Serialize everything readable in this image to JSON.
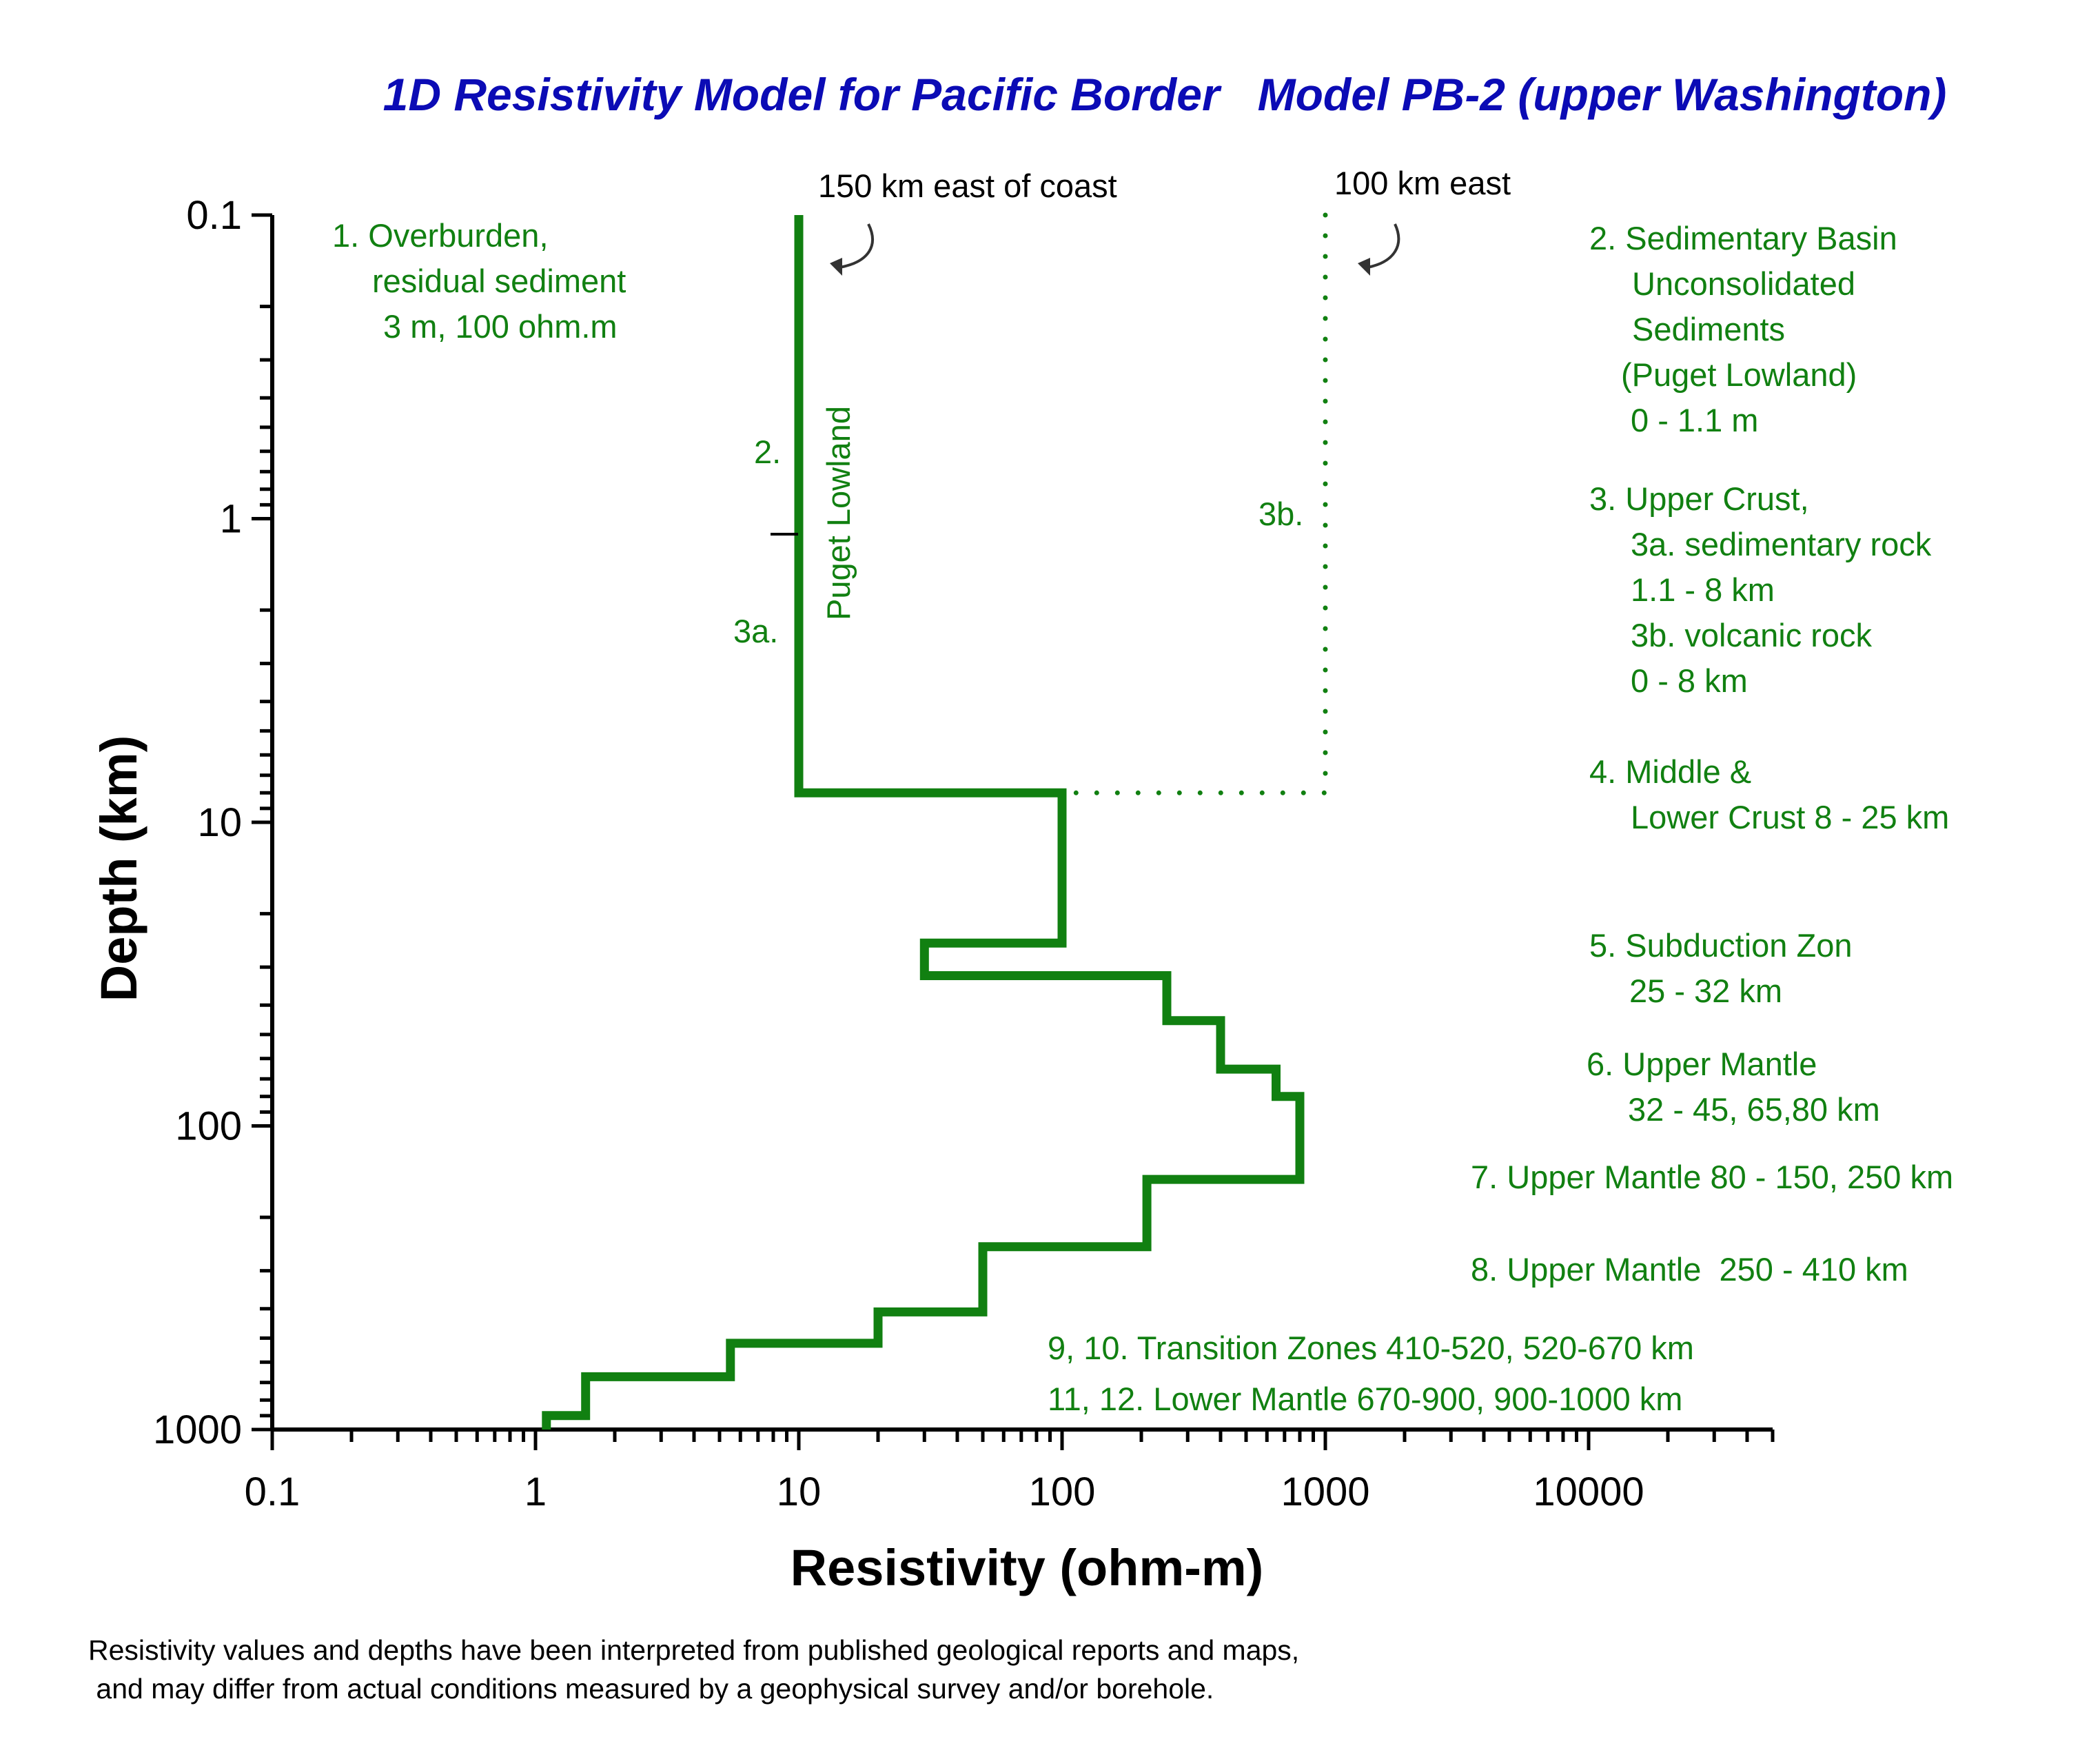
{
  "chart_data": {
    "type": "line",
    "title": "1D Resistivity Model for Pacific Border   Model PB-2 (upper Washington)",
    "xlabel": "Resistivity (ohm-m)",
    "ylabel": "Depth (km)",
    "x_scale": "log",
    "y_scale": "log",
    "y_inverted": true,
    "xlim": [
      0.1,
      50000
    ],
    "ylim": [
      0.1,
      1000
    ],
    "x_ticks": [
      "0.1",
      "1",
      "10",
      "100",
      "1000",
      "10000"
    ],
    "y_ticks": [
      "0.1",
      "1",
      "10",
      "100",
      "1000"
    ],
    "grid": false,
    "color": "#118011",
    "series": [
      {
        "name": "150 km east of coast",
        "style": "solid",
        "points": [
          [
            10,
            0.1
          ],
          [
            10,
            8
          ],
          [
            100,
            8
          ],
          [
            100,
            25
          ],
          [
            30,
            25
          ],
          [
            30,
            32
          ],
          [
            250,
            32
          ],
          [
            250,
            45
          ],
          [
            400,
            45
          ],
          [
            400,
            65
          ],
          [
            650,
            65
          ],
          [
            650,
            80
          ],
          [
            800,
            80
          ],
          [
            800,
            150
          ],
          [
            210,
            150
          ],
          [
            210,
            250
          ],
          [
            50,
            250
          ],
          [
            50,
            410
          ],
          [
            20,
            410
          ],
          [
            20,
            520
          ],
          [
            5.5,
            520
          ],
          [
            5.5,
            670
          ],
          [
            1.55,
            670
          ],
          [
            1.55,
            900
          ],
          [
            1.1,
            900
          ],
          [
            1.1,
            1000
          ]
        ]
      },
      {
        "name": "100 km east",
        "style": "dotted",
        "points": [
          [
            1000,
            0.1
          ],
          [
            1000,
            8
          ],
          [
            100,
            8
          ]
        ]
      }
    ],
    "annotations": {
      "profile_150": "150 km east of coast",
      "profile_100": "100 km east",
      "layer1": [
        "1. Overburden,",
        "residual sediment",
        "3 m, 100 ohm.m"
      ],
      "label_2": "2.",
      "label_3a": "3a.",
      "label_3b": "3b.",
      "puget": "Puget Lowland",
      "layer2": [
        "2. Sedimentary Basin",
        "Unconsolidated",
        "Sediments",
        "(Puget Lowland)",
        "0 - 1.1 m"
      ],
      "layer3": [
        "3. Upper Crust,",
        "3a. sedimentary rock",
        "1.1 - 8 km",
        "3b. volcanic rock",
        "0 - 8 km"
      ],
      "layer4": [
        "4. Middle &",
        "Lower Crust 8 - 25 km"
      ],
      "layer5": [
        "5. Subduction Zon",
        "25 - 32 km"
      ],
      "layer6": [
        "6. Upper Mantle",
        "32 - 45, 65,80 km"
      ],
      "layer7": "7. Upper Mantle 80 - 150, 250 km",
      "layer8": "8. Upper Mantle  250 - 410 km",
      "layer9_10": "9, 10. Transition Zones 410-520, 520-670 km",
      "layer11_12": "11, 12. Lower Mantle 670-900, 900-1000 km"
    },
    "footnote": [
      "Resistivity values and depths have been interpreted from published geological reports and maps,",
      " and may differ from actual conditions measured by a geophysical survey and/or borehole."
    ]
  }
}
